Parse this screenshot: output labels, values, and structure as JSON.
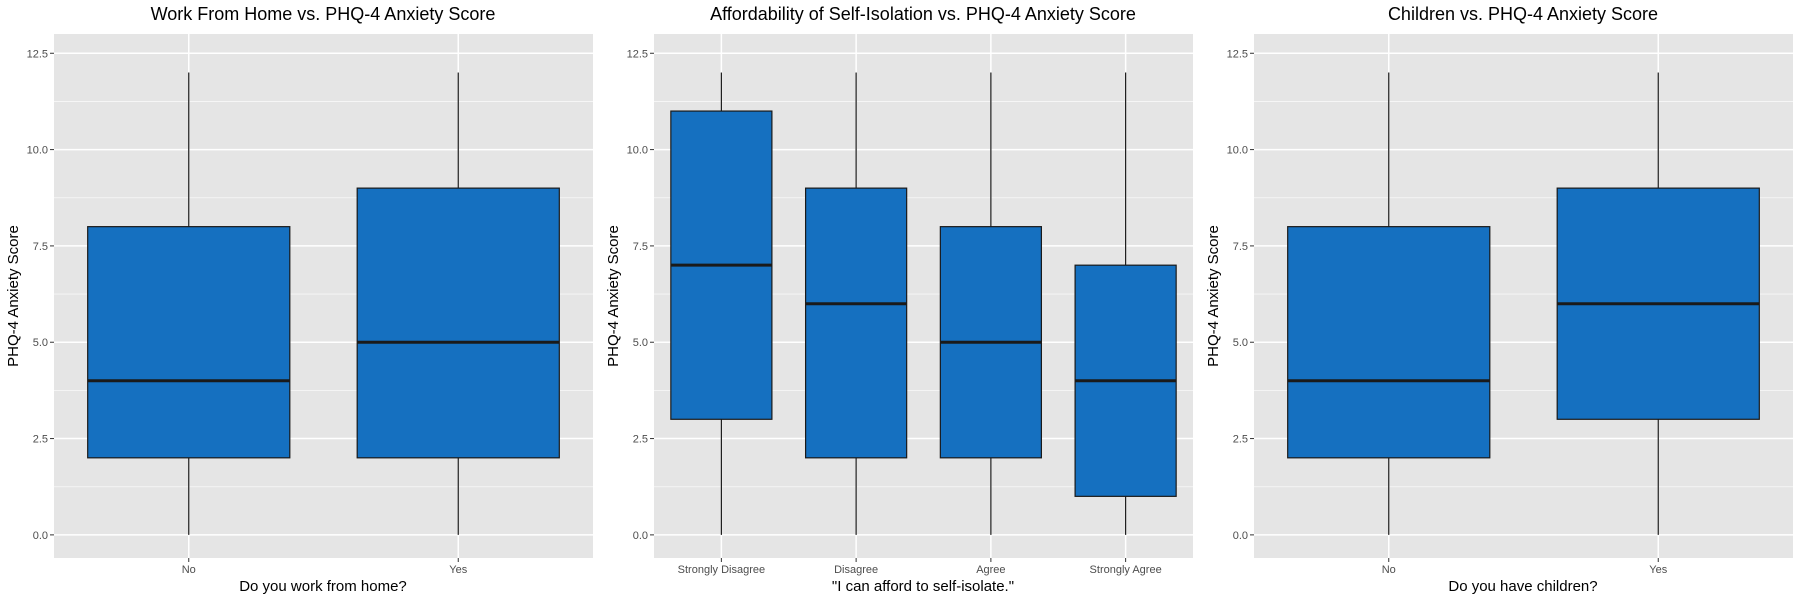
{
  "chart_data": [
    {
      "type": "boxplot",
      "title": "Work From Home vs. PHQ-4 Anxiety Score",
      "xlabel": "Do you work from home?",
      "ylabel": "PHQ-4 Anxiety Score",
      "ylim": [
        -0.6,
        13.0
      ],
      "yticks": [
        0,
        2.5,
        5,
        7.5,
        10,
        12.5
      ],
      "ytick_labels": [
        "0.0",
        "2.5",
        "5.0",
        "7.5",
        "10.0",
        "12.5"
      ],
      "categories": [
        "No",
        "Yes"
      ],
      "boxes": [
        {
          "category": "No",
          "min": 0,
          "q1": 2,
          "median": 4,
          "q3": 8,
          "max": 12
        },
        {
          "category": "Yes",
          "min": 0,
          "q1": 2,
          "median": 5,
          "q3": 9,
          "max": 12
        }
      ],
      "fill_color": "#1570c0",
      "grid": true
    },
    {
      "type": "boxplot",
      "title": "Affordability of Self-Isolation vs. PHQ-4 Anxiety Score",
      "xlabel": "\"I can afford to self-isolate.\"",
      "ylabel": "PHQ-4 Anxiety Score",
      "ylim": [
        -0.6,
        13.0
      ],
      "yticks": [
        0,
        2.5,
        5,
        7.5,
        10,
        12.5
      ],
      "ytick_labels": [
        "0.0",
        "2.5",
        "5.0",
        "7.5",
        "10.0",
        "12.5"
      ],
      "categories": [
        "Strongly Disagree",
        "Disagree",
        "Agree",
        "Strongly Agree"
      ],
      "boxes": [
        {
          "category": "Strongly Disagree",
          "min": 0,
          "q1": 3,
          "median": 7,
          "q3": 11,
          "max": 12
        },
        {
          "category": "Disagree",
          "min": 0,
          "q1": 2,
          "median": 6,
          "q3": 9,
          "max": 12
        },
        {
          "category": "Agree",
          "min": 0,
          "q1": 2,
          "median": 5,
          "q3": 8,
          "max": 12
        },
        {
          "category": "Strongly Agree",
          "min": 0,
          "q1": 1,
          "median": 4,
          "q3": 7,
          "max": 12
        }
      ],
      "fill_color": "#1570c0",
      "grid": true
    },
    {
      "type": "boxplot",
      "title": "Children vs. PHQ-4 Anxiety Score",
      "xlabel": "Do you have children?",
      "ylabel": "PHQ-4 Anxiety Score",
      "ylim": [
        -0.6,
        13.0
      ],
      "yticks": [
        0,
        2.5,
        5,
        7.5,
        10,
        12.5
      ],
      "ytick_labels": [
        "0.0",
        "2.5",
        "5.0",
        "7.5",
        "10.0",
        "12.5"
      ],
      "categories": [
        "No",
        "Yes"
      ],
      "boxes": [
        {
          "category": "No",
          "min": 0,
          "q1": 2,
          "median": 4,
          "q3": 8,
          "max": 12
        },
        {
          "category": "Yes",
          "min": 0,
          "q1": 3,
          "median": 6,
          "q3": 9,
          "max": 12
        }
      ],
      "fill_color": "#1570c0",
      "grid": true
    }
  ],
  "colors": {
    "panel_background": "#e5e5e5",
    "gridline": "#ffffff",
    "box_fill": "#1570c0",
    "box_outline": "#1a1a1a",
    "median_line": "#1a1a1a",
    "tick_text": "#4d4d4d",
    "title_text": "#000000"
  }
}
